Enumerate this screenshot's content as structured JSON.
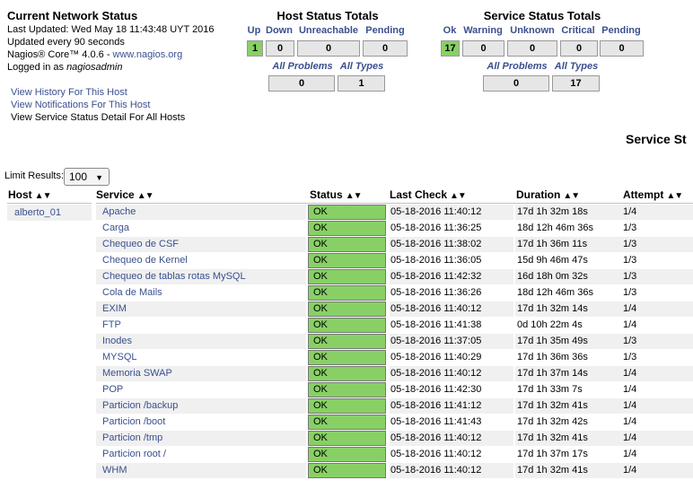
{
  "info": {
    "title": "Current Network Status",
    "last_updated": "Last Updated: Wed May 18 11:43:48 UYT 2016",
    "update_interval": "Updated every 90 seconds",
    "core_prefix": "Nagios® Core™ 4.0.6 - ",
    "core_link": "www.nagios.org",
    "logged_in_prefix": "Logged in as ",
    "logged_in_user": "nagiosadmin"
  },
  "links": {
    "history": "View History For This Host",
    "notifications": "View Notifications For This Host",
    "service_detail": "View Service Status Detail For All Hosts"
  },
  "host_totals": {
    "title": "Host Status Totals",
    "labels": [
      "Up",
      "Down",
      "Unreachable",
      "Pending"
    ],
    "values": [
      "1",
      "0",
      "0",
      "0"
    ],
    "all_problems_label": "All Problems",
    "all_types_label": "All Types",
    "all_problems": "0",
    "all_types": "1"
  },
  "service_totals": {
    "title": "Service Status Totals",
    "labels": [
      "Ok",
      "Warning",
      "Unknown",
      "Critical",
      "Pending"
    ],
    "values": [
      "17",
      "0",
      "0",
      "0",
      "0"
    ],
    "all_problems_label": "All Problems",
    "all_types_label": "All Types",
    "all_problems": "0",
    "all_types": "17"
  },
  "service_heading": "Service St",
  "limit": {
    "label": "Limit Results:",
    "value": "100"
  },
  "columns": [
    "Host",
    "Service",
    "Status",
    "Last Check",
    "Duration",
    "Attempt"
  ],
  "host": "alberto_01",
  "colors": {
    "ok": "#88d066",
    "link": "#3a4f8f",
    "row_alt": "#f0f0f0"
  },
  "rows": [
    {
      "service": "Apache",
      "status": "OK",
      "last_check": "05-18-2016 11:40:12",
      "duration": "17d 1h 32m 18s",
      "attempt": "1/4"
    },
    {
      "service": "Carga",
      "status": "OK",
      "last_check": "05-18-2016 11:36:25",
      "duration": "18d 12h 46m 36s",
      "attempt": "1/3"
    },
    {
      "service": "Chequeo de CSF",
      "status": "OK",
      "last_check": "05-18-2016 11:38:02",
      "duration": "17d 1h 36m 11s",
      "attempt": "1/3"
    },
    {
      "service": "Chequeo de Kernel",
      "status": "OK",
      "last_check": "05-18-2016 11:36:05",
      "duration": "15d 9h 46m 47s",
      "attempt": "1/3"
    },
    {
      "service": "Chequeo de tablas rotas MySQL",
      "status": "OK",
      "last_check": "05-18-2016 11:42:32",
      "duration": "16d 18h 0m 32s",
      "attempt": "1/3"
    },
    {
      "service": "Cola de Mails",
      "status": "OK",
      "last_check": "05-18-2016 11:36:26",
      "duration": "18d 12h 46m 36s",
      "attempt": "1/3"
    },
    {
      "service": "EXIM",
      "status": "OK",
      "last_check": "05-18-2016 11:40:12",
      "duration": "17d 1h 32m 14s",
      "attempt": "1/4"
    },
    {
      "service": "FTP",
      "status": "OK",
      "last_check": "05-18-2016 11:41:38",
      "duration": "0d 10h 22m 4s",
      "attempt": "1/4"
    },
    {
      "service": "Inodes",
      "status": "OK",
      "last_check": "05-18-2016 11:37:05",
      "duration": "17d 1h 35m 49s",
      "attempt": "1/3"
    },
    {
      "service": "MYSQL",
      "status": "OK",
      "last_check": "05-18-2016 11:40:29",
      "duration": "17d 1h 36m 36s",
      "attempt": "1/3"
    },
    {
      "service": "Memoria SWAP",
      "status": "OK",
      "last_check": "05-18-2016 11:40:12",
      "duration": "17d 1h 37m 14s",
      "attempt": "1/4"
    },
    {
      "service": "POP",
      "status": "OK",
      "last_check": "05-18-2016 11:42:30",
      "duration": "17d 1h 33m 7s",
      "attempt": "1/4"
    },
    {
      "service": "Particion /backup",
      "status": "OK",
      "last_check": "05-18-2016 11:41:12",
      "duration": "17d 1h 32m 41s",
      "attempt": "1/4"
    },
    {
      "service": "Particion /boot",
      "status": "OK",
      "last_check": "05-18-2016 11:41:43",
      "duration": "17d 1h 32m 42s",
      "attempt": "1/4"
    },
    {
      "service": "Particion /tmp",
      "status": "OK",
      "last_check": "05-18-2016 11:40:12",
      "duration": "17d 1h 32m 41s",
      "attempt": "1/4"
    },
    {
      "service": "Particion root /",
      "status": "OK",
      "last_check": "05-18-2016 11:40:12",
      "duration": "17d 1h 37m 17s",
      "attempt": "1/4"
    },
    {
      "service": "WHM",
      "status": "OK",
      "last_check": "05-18-2016 11:40:12",
      "duration": "17d 1h 32m 41s",
      "attempt": "1/4"
    }
  ]
}
